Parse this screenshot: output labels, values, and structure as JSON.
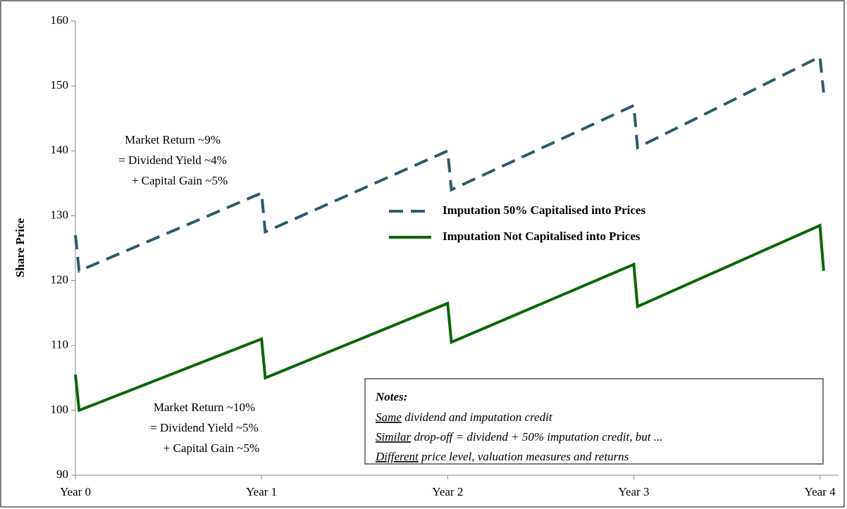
{
  "chart_data": {
    "type": "line",
    "y_axis_label": "Share Price",
    "xlim": [
      0,
      4.1
    ],
    "xticks": [
      {
        "value": 0,
        "label": "Year 0"
      },
      {
        "value": 1,
        "label": "Year 1"
      },
      {
        "value": 2,
        "label": "Year 2"
      },
      {
        "value": 3,
        "label": "Year 3"
      },
      {
        "value": 4,
        "label": "Year 4"
      }
    ],
    "ylim": [
      90,
      160
    ],
    "yticks": [
      90,
      100,
      110,
      120,
      130,
      140,
      150,
      160
    ],
    "grid": false,
    "legend_position": "center-right",
    "series": [
      {
        "name": "Imputation 50% Capitalised into Prices",
        "color": "#2f5a6a",
        "line_style": "dashed",
        "x": [
          0,
          0.02,
          1,
          1.02,
          2,
          2.02,
          3,
          3.02,
          4,
          4.02
        ],
        "values": [
          127,
          121.5,
          133.5,
          127.5,
          140,
          134,
          147,
          140.5,
          154.5,
          149
        ]
      },
      {
        "name": "Imputation Not Capitalised into Prices",
        "color": "#0b650b",
        "line_style": "solid",
        "x": [
          0,
          0.02,
          1,
          1.02,
          2,
          2.02,
          3,
          3.02,
          4,
          4.02
        ],
        "values": [
          105.5,
          100,
          111,
          105,
          116.5,
          110.5,
          122.5,
          116,
          128.5,
          121.5
        ]
      }
    ],
    "annotations": [
      {
        "color": "#2e6474",
        "lines": [
          "Market Return  ~9%",
          "= Dividend Yield  ~4%",
          "+ Capital Gain ~5%"
        ]
      },
      {
        "color": "#1a7a1a",
        "lines": [
          "Market Return ~10%",
          "= Dividend Yield  ~5%",
          "+ Capital Gain ~5%"
        ]
      }
    ],
    "notes": {
      "title": "Notes:",
      "lines": [
        {
          "underlined": "Same",
          "text": " dividend and imputation credit"
        },
        {
          "underlined": "Similar",
          "text": " drop-off = dividend + 50% imputation credit, but ..."
        },
        {
          "underlined": "Different",
          "text": " price level, valuation measures and returns"
        }
      ]
    }
  }
}
